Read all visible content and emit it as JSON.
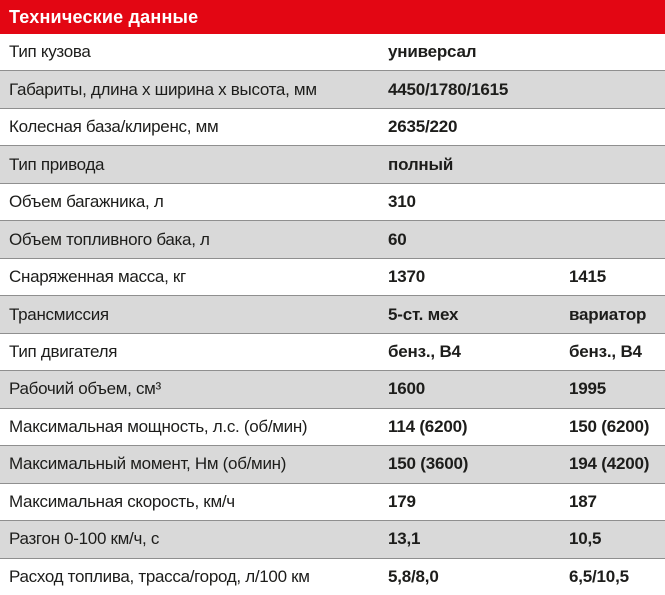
{
  "colors": {
    "accent_red": "#e30613",
    "row_alt_gray": "#d9d9d9",
    "separator_gray": "#8f8f8f",
    "text": "#1d1d1b",
    "title_text": "#ffffff"
  },
  "chart_data": {
    "type": "table",
    "title": "Технические данные",
    "rows": [
      {
        "label": "Тип кузова",
        "values": [
          "универсал"
        ]
      },
      {
        "label": "Габариты, длина х ширина х высота, мм",
        "values": [
          "4450/1780/1615"
        ]
      },
      {
        "label": "Колесная база/клиренс, мм",
        "values": [
          "2635/220"
        ]
      },
      {
        "label": "Тип привода",
        "values": [
          "полный"
        ]
      },
      {
        "label": "Объем багажника, л",
        "values": [
          "310"
        ]
      },
      {
        "label": "Объем топливного бака, л",
        "values": [
          "60"
        ]
      },
      {
        "label": "Снаряженная масса, кг",
        "values": [
          "1370",
          "1415"
        ]
      },
      {
        "label": "Трансмиссия",
        "values": [
          "5-ст. мех",
          "вариатор"
        ]
      },
      {
        "label": "Тип двигателя",
        "values": [
          "бенз., В4",
          "бенз., В4"
        ]
      },
      {
        "label": "Рабочий объем, см³",
        "values": [
          "1600",
          "1995"
        ]
      },
      {
        "label": "Максимальная мощность, л.с. (об/мин)",
        "values": [
          "114 (6200)",
          "150 (6200)"
        ]
      },
      {
        "label": "Максимальный момент, Нм (об/мин)",
        "values": [
          "150 (3600)",
          "194 (4200)"
        ]
      },
      {
        "label": "Максимальная скорость, км/ч",
        "values": [
          "179",
          "187"
        ]
      },
      {
        "label": "Разгон 0-100 км/ч, с",
        "values": [
          "13,1",
          "10,5"
        ]
      },
      {
        "label": "Расход топлива, трасса/город, л/100 км",
        "values": [
          "5,8/8,0",
          "6,5/10,5"
        ]
      }
    ]
  }
}
